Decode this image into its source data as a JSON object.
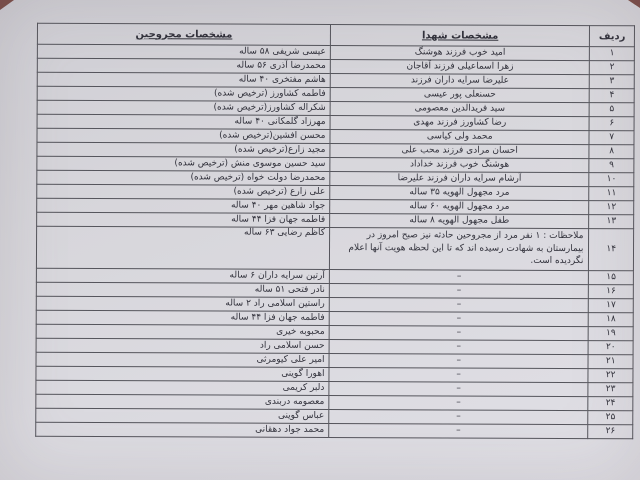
{
  "table": {
    "columns": [
      {
        "key": "radif",
        "label": "ردیف"
      },
      {
        "key": "shohada",
        "label": "مشخصات شهدا"
      },
      {
        "key": "majruhin",
        "label": "مشخصات مجروحین"
      }
    ],
    "rows": [
      {
        "num": "۱",
        "shohada": "امید خوب فرزند هوشنگ",
        "majruhin": "عیسی شریفی ۵۸ ساله",
        "note": false
      },
      {
        "num": "۲",
        "shohada": "زهرا اسماعیلی فرزند آقاجان",
        "majruhin": "محمدرضا آذری ۵۶ ساله",
        "note": false
      },
      {
        "num": "۳",
        "shohada": "علیرضا سرایه داران فرزند",
        "majruhin": "هاشم مفتخری ۴۰ ساله",
        "note": false
      },
      {
        "num": "۴",
        "shohada": "حسنعلی پور عیسی",
        "majruhin": "فاطمه کشاورز (ترخیص شده)",
        "note": false
      },
      {
        "num": "۵",
        "shohada": "سید فریدالدین معصومی",
        "majruhin": "شکراله کشاورز(ترخیص شده)",
        "note": false
      },
      {
        "num": "۶",
        "shohada": "رضا کشاورز فرزند مهدی",
        "majruhin": "مهرزاد گلمکانی ۴۰ ساله",
        "note": false
      },
      {
        "num": "۷",
        "shohada": "محمد ولی کیاسی",
        "majruhin": "محسن افشین(ترخیص شده)",
        "note": false
      },
      {
        "num": "۸",
        "shohada": "احسان مرادی فرزند محب علی",
        "majruhin": "مجید زارع(ترخیص شده)",
        "note": false
      },
      {
        "num": "۹",
        "shohada": "هوشنگ خوب فرزند خداداد",
        "majruhin": "سید حسین موسوی منش (ترخیص شده)",
        "note": false
      },
      {
        "num": "۱۰",
        "shohada": "آرشام سرایه داران فرزند علیرضا",
        "majruhin": "محمدرضا دولت خواه (ترخیص شده)",
        "note": false
      },
      {
        "num": "۱۱",
        "shohada": "مرد مجهول الهویه ۳۵ ساله",
        "majruhin": "علی زارع (ترخیص شده)",
        "note": false
      },
      {
        "num": "۱۲",
        "shohada": "مرد مجهول الهویه ۶۰ ساله",
        "majruhin": "جواد شاهین مهر ۴۰ ساله",
        "note": false
      },
      {
        "num": "۱۳",
        "shohada": "طفل مجهول الهویه ۸ ساله",
        "majruhin": "فاطمه جهان فزا ۴۴ ساله",
        "note": false
      },
      {
        "num": "۱۴",
        "shohada": "ملاحظات : ۱ نفر مرد از مجروحین حادثه نیز صبح امروز در بیمارستان به شهادت رسیده اند که تا این لحظه هویت آنها اعلام نگردیده است.",
        "majruhin": "کاظم رضایی ۶۳ ساله",
        "note": true
      },
      {
        "num": "۱۵",
        "shohada": "–",
        "majruhin": "آرتین سرایه داران ۶ ساله",
        "note": false
      },
      {
        "num": "۱۶",
        "shohada": "–",
        "majruhin": "نادر فتحی ۵۱ ساله",
        "note": false
      },
      {
        "num": "۱۷",
        "shohada": "–",
        "majruhin": "راستین اسلامی راد ۲ ساله",
        "note": false
      },
      {
        "num": "۱۸",
        "shohada": "–",
        "majruhin": "فاطمه جهان فزا ۴۴ ساله",
        "note": false
      },
      {
        "num": "۱۹",
        "shohada": "–",
        "majruhin": "محبوبه خیری",
        "note": false
      },
      {
        "num": "۲۰",
        "shohada": "–",
        "majruhin": "حسن اسلامی راد",
        "note": false
      },
      {
        "num": "۲۱",
        "shohada": "–",
        "majruhin": "امیر علی کیومرثی",
        "note": false
      },
      {
        "num": "۲۲",
        "shohada": "–",
        "majruhin": "اهورا گوینی",
        "note": false
      },
      {
        "num": "۲۳",
        "shohada": "–",
        "majruhin": "دلبر کریمی",
        "note": false
      },
      {
        "num": "۲۴",
        "shohada": "–",
        "majruhin": "معصومه دربندی",
        "note": false
      },
      {
        "num": "۲۵",
        "shohada": "–",
        "majruhin": "عباس گوینی",
        "note": false
      },
      {
        "num": "۲۶",
        "shohada": "–",
        "majruhin": "محمد جواد دهقانی",
        "note": false
      }
    ]
  },
  "colors": {
    "paper": "#d7d6db",
    "ink": "#31313b",
    "line": "#55555c",
    "photo_corner": "#7a4a45"
  }
}
